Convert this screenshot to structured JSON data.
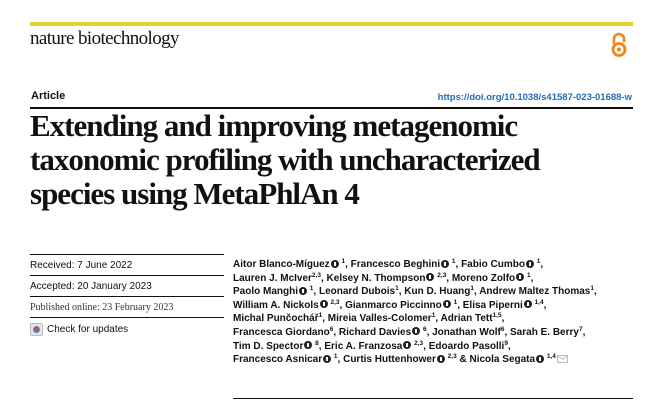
{
  "header": {
    "journal_name": "nature biotechnology",
    "accent_color": "#e8d22a",
    "open_access_icon": "open-access-lock-icon",
    "open_access_color": "#f68212"
  },
  "article": {
    "type_label": "Article",
    "doi": "https://doi.org/10.1038/s41587-023-01688-w",
    "title_lines": [
      "Extending and improving metagenomic",
      "taxonomic profiling with uncharacterized",
      "species using MetaPhlAn 4"
    ]
  },
  "meta": {
    "received": "Received: 7 June 2022",
    "accepted": "Accepted: 20 January 2023",
    "published": "Published online: 23 February 2023",
    "check_updates": "Check for updates"
  },
  "authors": [
    {
      "name": "Aitor Blanco-Míguez",
      "orcid": true,
      "aff": "1"
    },
    {
      "name": "Francesco Beghini",
      "orcid": true,
      "aff": "1"
    },
    {
      "name": "Fabio Cumbo",
      "orcid": true,
      "aff": "1"
    },
    {
      "name": "Lauren J. McIver",
      "orcid": false,
      "aff": "2,3"
    },
    {
      "name": "Kelsey N. Thompson",
      "orcid": true,
      "aff": "2,3"
    },
    {
      "name": "Moreno Zolfo",
      "orcid": true,
      "aff": "1"
    },
    {
      "name": "Paolo Manghi",
      "orcid": true,
      "aff": "1"
    },
    {
      "name": "Leonard Dubois",
      "orcid": false,
      "aff": "1"
    },
    {
      "name": "Kun D. Huang",
      "orcid": false,
      "aff": "1"
    },
    {
      "name": "Andrew Maltez Thomas",
      "orcid": false,
      "aff": "1"
    },
    {
      "name": "William A. Nickols",
      "orcid": true,
      "aff": "2,3"
    },
    {
      "name": "Gianmarco Piccinno",
      "orcid": true,
      "aff": "1"
    },
    {
      "name": "Elisa Piperni",
      "orcid": true,
      "aff": "1,4"
    },
    {
      "name": "Michal Punčochář",
      "orcid": false,
      "aff": "1"
    },
    {
      "name": "Mireia Valles-Colomer",
      "orcid": false,
      "aff": "1"
    },
    {
      "name": "Adrian Tett",
      "orcid": false,
      "aff": "1,5"
    },
    {
      "name": "Francesca Giordano",
      "orcid": false,
      "aff": "6"
    },
    {
      "name": "Richard Davies",
      "orcid": true,
      "aff": "6"
    },
    {
      "name": "Jonathan Wolf",
      "orcid": false,
      "aff": "6"
    },
    {
      "name": "Sarah E. Berry",
      "orcid": false,
      "aff": "7"
    },
    {
      "name": "Tim D. Spector",
      "orcid": true,
      "aff": "8"
    },
    {
      "name": "Eric A. Franzosa",
      "orcid": true,
      "aff": "2,3"
    },
    {
      "name": "Edoardo Pasolli",
      "orcid": false,
      "aff": "9"
    },
    {
      "name": "Francesco Asnicar",
      "orcid": true,
      "aff": "1"
    },
    {
      "name": "Curtis Huttenhower",
      "orcid": true,
      "aff": "2,3"
    },
    {
      "name": "Nicola Segata",
      "orcid": true,
      "aff": "1,4",
      "corresponding": true
    }
  ],
  "author_lines": [
    [
      0,
      1,
      2
    ],
    [
      3,
      4,
      5
    ],
    [
      6,
      7,
      8,
      9
    ],
    [
      10,
      11,
      12
    ],
    [
      13,
      14,
      15
    ],
    [
      16,
      17,
      18,
      19
    ],
    [
      20,
      21,
      22
    ],
    [
      23,
      24,
      25
    ]
  ],
  "separators": {
    "comma": ", ",
    "and": " & "
  }
}
